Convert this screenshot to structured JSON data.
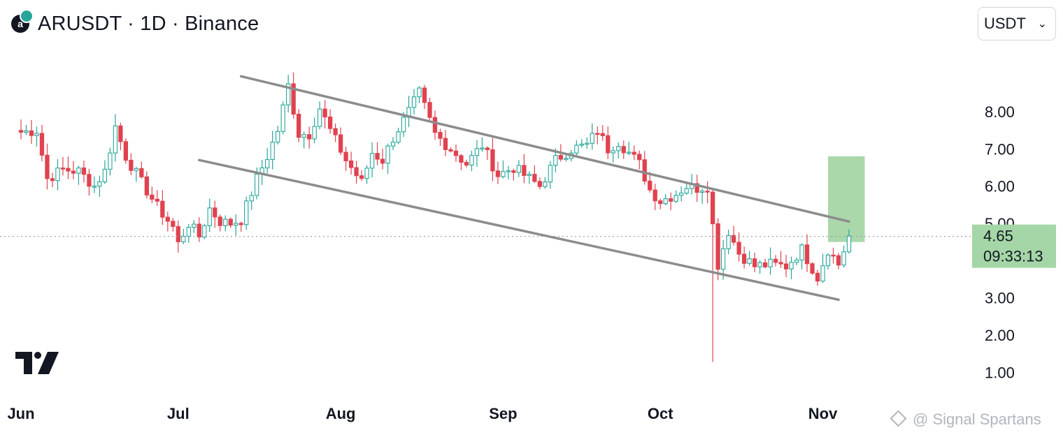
{
  "header": {
    "title": "ARUSDT · 1D · Binance",
    "exchange_logo_letter": "a",
    "exchange_logo_icon": "exchange-logo-icon"
  },
  "currency": {
    "selected": "USDT"
  },
  "watermark": {
    "text": "@ Signal Spartans"
  },
  "colors": {
    "up": "#26a69a",
    "down": "#e0424f",
    "channel": "#8c8c8c",
    "target": "#a5d6a7",
    "price_label": "#a5d6a7",
    "axis_text": "#131722"
  },
  "chart_data": {
    "type": "candlestick",
    "y_ticks": [
      "1.00",
      "2.00",
      "3.00",
      "4.00",
      "5.00",
      "6.00",
      "7.00",
      "8.00"
    ],
    "x_ticks": [
      "Jun",
      "Jul",
      "Aug",
      "Sep",
      "Oct",
      "Nov"
    ],
    "x_range": [
      "2024-06-01",
      "2024-11-06"
    ],
    "y_range": [
      0.5,
      9.5
    ],
    "last_price": "4.65",
    "last_price_value": 4.65,
    "countdown": "09:33:13",
    "channel_upper": [
      [
        "2024-07-13",
        8.95
      ],
      [
        "2024-11-06",
        5.05
      ]
    ],
    "channel_lower": [
      [
        "2024-07-05",
        6.7
      ],
      [
        "2024-11-04",
        2.95
      ]
    ],
    "target_zone": {
      "from_date": "2024-11-02",
      "to_date": "2024-11-09",
      "low": 4.5,
      "high": 6.8
    },
    "closes": [
      [
        "2024-06-01",
        7.45
      ],
      [
        "2024-06-04",
        7.5
      ],
      [
        "2024-06-06",
        6.2
      ],
      [
        "2024-06-09",
        6.45
      ],
      [
        "2024-06-12",
        6.4
      ],
      [
        "2024-06-15",
        6.0
      ],
      [
        "2024-06-17",
        6.4
      ],
      [
        "2024-06-19",
        7.6
      ],
      [
        "2024-06-21",
        6.8
      ],
      [
        "2024-06-24",
        6.1
      ],
      [
        "2024-06-27",
        5.45
      ],
      [
        "2024-06-30",
        4.9
      ],
      [
        "2024-07-01",
        4.45
      ],
      [
        "2024-07-03",
        5.0
      ],
      [
        "2024-07-05",
        4.65
      ],
      [
        "2024-07-07",
        5.4
      ],
      [
        "2024-07-09",
        5.05
      ],
      [
        "2024-07-11",
        5.0
      ],
      [
        "2024-07-13",
        5.1
      ],
      [
        "2024-07-16",
        6.2
      ],
      [
        "2024-07-18",
        6.8
      ],
      [
        "2024-07-20",
        7.5
      ],
      [
        "2024-07-22",
        8.7
      ],
      [
        "2024-07-24",
        7.4
      ],
      [
        "2024-07-26",
        7.4
      ],
      [
        "2024-07-28",
        8.1
      ],
      [
        "2024-07-30",
        7.5
      ],
      [
        "2024-08-02",
        6.7
      ],
      [
        "2024-08-05",
        6.1
      ],
      [
        "2024-08-07",
        6.9
      ],
      [
        "2024-08-09",
        6.7
      ],
      [
        "2024-08-11",
        7.3
      ],
      [
        "2024-08-14",
        8.0
      ],
      [
        "2024-08-16",
        8.5
      ],
      [
        "2024-08-19",
        7.4
      ],
      [
        "2024-08-22",
        7.0
      ],
      [
        "2024-08-25",
        6.6
      ],
      [
        "2024-08-28",
        7.1
      ],
      [
        "2024-08-31",
        6.3
      ],
      [
        "2024-09-03",
        6.5
      ],
      [
        "2024-09-06",
        6.2
      ],
      [
        "2024-09-08",
        6.0
      ],
      [
        "2024-09-11",
        6.7
      ],
      [
        "2024-09-14",
        7.0
      ],
      [
        "2024-09-17",
        7.1
      ],
      [
        "2024-09-19",
        7.5
      ],
      [
        "2024-09-21",
        7.0
      ],
      [
        "2024-09-23",
        7.2
      ],
      [
        "2024-09-25",
        6.9
      ],
      [
        "2024-09-27",
        6.6
      ],
      [
        "2024-09-29",
        5.9
      ],
      [
        "2024-10-01",
        5.6
      ],
      [
        "2024-10-04",
        5.8
      ],
      [
        "2024-10-06",
        6.0
      ],
      [
        "2024-10-08",
        5.95
      ],
      [
        "2024-10-10",
        6.0
      ],
      [
        "2024-10-12",
        3.9
      ],
      [
        "2024-10-14",
        4.8
      ],
      [
        "2024-10-16",
        4.2
      ],
      [
        "2024-10-19",
        3.85
      ],
      [
        "2024-10-22",
        3.9
      ],
      [
        "2024-10-25",
        3.85
      ],
      [
        "2024-10-28",
        4.3
      ],
      [
        "2024-10-31",
        3.55
      ],
      [
        "2024-11-02",
        4.3
      ],
      [
        "2024-11-04",
        3.9
      ],
      [
        "2024-11-06",
        4.65
      ]
    ],
    "wick_low": {
      "date": "2024-10-11",
      "value": 1.28
    }
  }
}
